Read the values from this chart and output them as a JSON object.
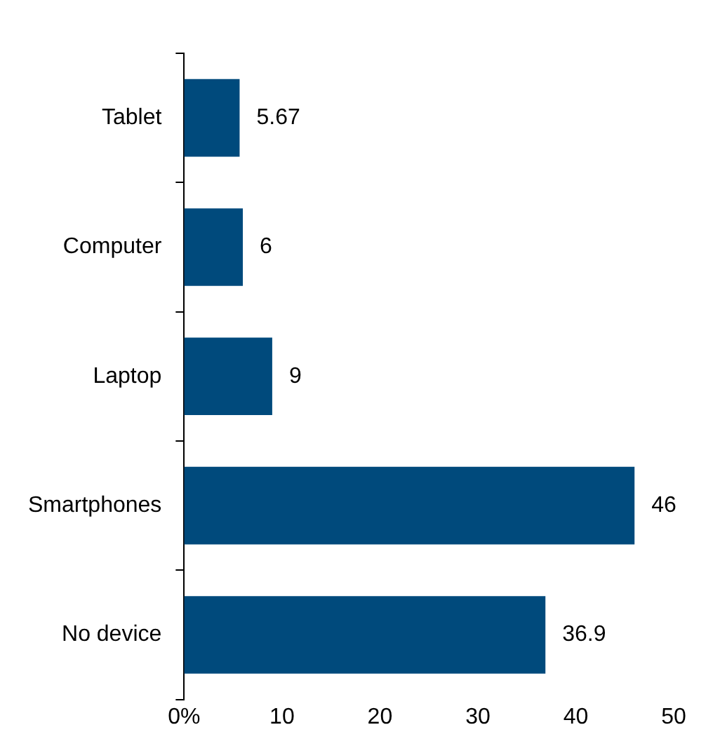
{
  "chart_data": {
    "type": "bar",
    "orientation": "horizontal",
    "categories": [
      "Tablet",
      "Computer",
      "Laptop",
      "Smartphones",
      "No device"
    ],
    "values": [
      5.67,
      6,
      9,
      46,
      36.9
    ],
    "color": "#004a7c",
    "xlim": [
      0,
      50
    ],
    "xticks": [
      {
        "value": 0,
        "label": "0%"
      },
      10,
      20,
      30,
      40,
      50
    ],
    "data_labels": true,
    "grid": false,
    "legend": false
  }
}
